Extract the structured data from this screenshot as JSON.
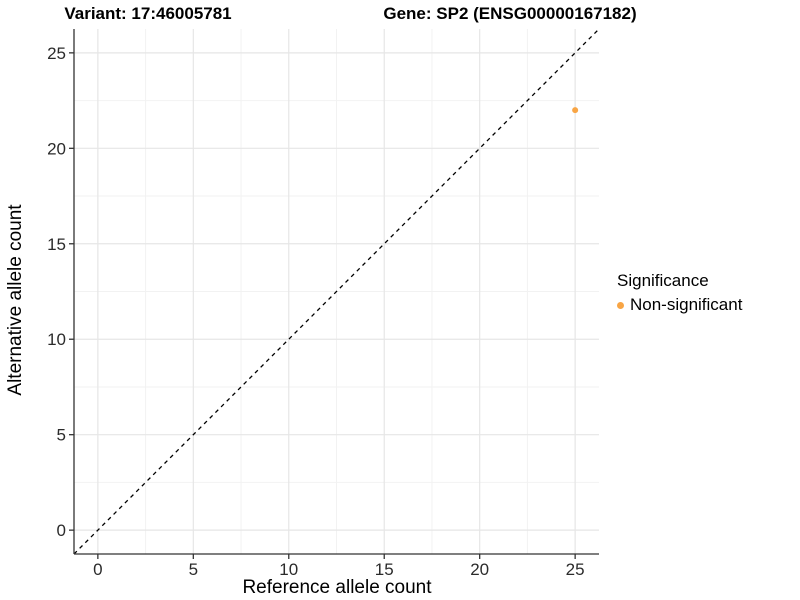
{
  "header": {
    "variant_title": "Variant: 17:46005781",
    "gene_title": "Gene: SP2 (ENSG00000167182)"
  },
  "chart_data": {
    "type": "scatter",
    "title_left": "Variant: 17:46005781",
    "title_right": "Gene: SP2 (ENSG00000167182)",
    "xlabel": "Reference allele count",
    "ylabel": "Alternative allele count",
    "xlim": [
      -1.25,
      26.25
    ],
    "ylim": [
      -1.25,
      26.25
    ],
    "x_ticks": [
      0,
      5,
      10,
      15,
      20,
      25
    ],
    "y_ticks": [
      0,
      5,
      10,
      15,
      20,
      25
    ],
    "x_minor": [
      2.5,
      7.5,
      12.5,
      17.5,
      22.5
    ],
    "y_minor": [
      2.5,
      7.5,
      12.5,
      17.5,
      22.5
    ],
    "grid": true,
    "abline": {
      "slope": 1,
      "intercept": 0,
      "style": "dashed",
      "color": "#000000"
    },
    "points": [
      {
        "x": 25,
        "y": 22,
        "significance": "Non-significant",
        "color": "#F8A545"
      }
    ],
    "legend": {
      "title": "Significance",
      "position": "right",
      "items": [
        {
          "label": "Non-significant",
          "color": "#F8A545"
        }
      ]
    },
    "colors": {
      "grid_major": "#E6E6E6",
      "grid_minor": "#F2F2F2",
      "axis_line": "#333333",
      "tick_text": "#2b2b2b"
    }
  }
}
